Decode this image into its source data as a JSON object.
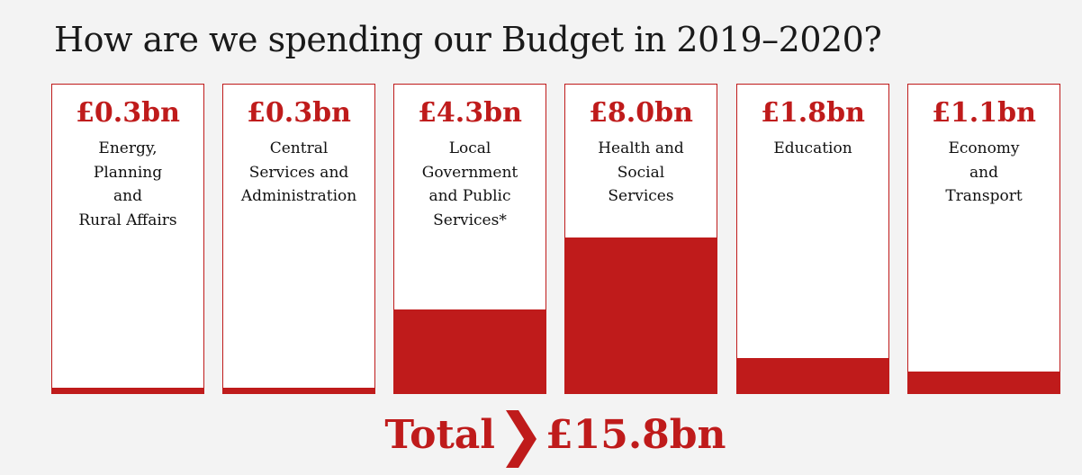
{
  "title": "How are we spending our Budget in 2019–2020?",
  "chart_data": {
    "type": "bar",
    "title": "How are we spending our Budget in 2019–2020?",
    "categories": [
      "Energy, Planning and Rural Affairs",
      "Central Services and Administration",
      "Local Government and Public Services*",
      "Health and Social Services",
      "Education",
      "Economy and Transport"
    ],
    "values": [
      0.3,
      0.3,
      4.3,
      8.0,
      1.8,
      1.1
    ],
    "unit": "£bn",
    "ylim": [
      0,
      15.8
    ],
    "color": "#bf1b1b"
  },
  "cards": [
    {
      "value_label": "£0.3bn",
      "label_lines": [
        "Energy,",
        "Planning",
        "and",
        "Rural Affairs"
      ]
    },
    {
      "value_label": "£0.3bn",
      "label_lines": [
        "Central",
        "Services and",
        "Administration"
      ]
    },
    {
      "value_label": "£4.3bn",
      "label_lines": [
        "Local",
        "Government",
        "and Public",
        "Services*"
      ]
    },
    {
      "value_label": "£8.0bn",
      "label_lines": [
        "Health and",
        "Social",
        "Services"
      ]
    },
    {
      "value_label": "£1.8bn",
      "label_lines": [
        "Education"
      ]
    },
    {
      "value_label": "£1.1bn",
      "label_lines": [
        "Economy",
        "and",
        "Transport"
      ]
    }
  ],
  "total": {
    "label": "Total",
    "value_label": "£15.8bn",
    "value": 15.8
  }
}
